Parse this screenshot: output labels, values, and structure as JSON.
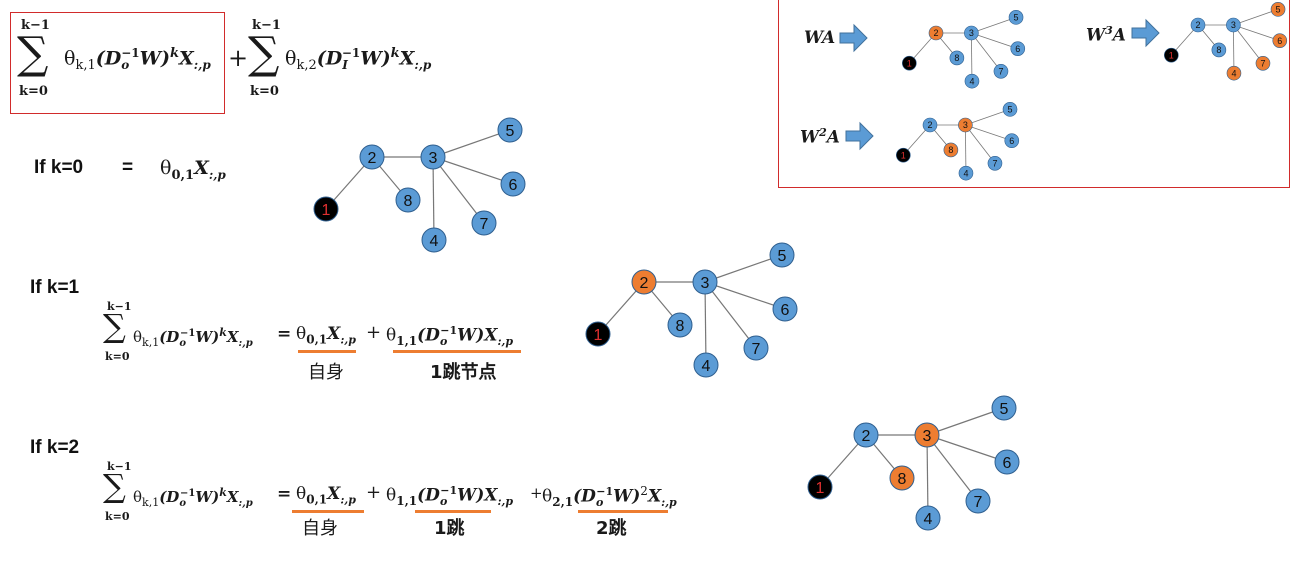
{
  "formula": {
    "k_minus_1": "k−1",
    "k_eq_0": "k=0",
    "sum_sign": "∑",
    "theta_k1": "θ",
    "sub_k1": "k,1",
    "sub_k2": "k,2",
    "D_o": "(D",
    "D_o_sub": "o",
    "D_I_sub": "I",
    "inv": "−1",
    "W": "W)",
    "k_sup": "k",
    "X": "X",
    "X_sub": ":,p",
    "plus": "+",
    "equals": "="
  },
  "rows": {
    "k0": {
      "label": "If k=0",
      "equals": "=",
      "theta": "θ",
      "theta_sub": "0,1",
      "X": "X",
      "X_sub": ":,p"
    },
    "k1": {
      "label": "If k=1",
      "self_label": "自身",
      "hop1_label": "1跳节点",
      "theta_a_sub": "0,1",
      "theta_b_sub": "1,1"
    },
    "k2": {
      "label": "If k=2",
      "self_label": "自身",
      "hop1_label": "1跳",
      "hop2_label": "2跳",
      "theta_a_sub": "0,1",
      "theta_b_sub": "1,1",
      "theta_c_sub": "2,1",
      "sq": "2"
    }
  },
  "inset": {
    "wa_label": "WA",
    "w2a_label": "W",
    "w2a_sup": "2",
    "w2a_tail": "A",
    "w3a_label": "W",
    "w3a_sup": "3",
    "w3a_tail": "A"
  },
  "graph": {
    "node_labels": [
      "1",
      "2",
      "3",
      "4",
      "5",
      "6",
      "7",
      "8"
    ],
    "edges": [
      [
        "1",
        "2"
      ],
      [
        "2",
        "3"
      ],
      [
        "2",
        "8"
      ],
      [
        "3",
        "5"
      ],
      [
        "3",
        "6"
      ],
      [
        "3",
        "7"
      ],
      [
        "3",
        "4"
      ]
    ],
    "colors": {
      "blue": "#5b9bd5",
      "orange": "#ed7d31",
      "black": "#000000",
      "red_text": "#e03030",
      "edge": "#777777"
    },
    "graphs": [
      {
        "id": "g-k0",
        "orange": []
      },
      {
        "id": "g-k1",
        "orange": [
          "2"
        ]
      },
      {
        "id": "g-k2",
        "orange": [
          "3",
          "8"
        ]
      },
      {
        "id": "g-wa",
        "orange": [
          "2"
        ]
      },
      {
        "id": "g-w2a",
        "orange": [
          "3",
          "8"
        ]
      },
      {
        "id": "g-w3a",
        "orange": [
          "5",
          "6",
          "7",
          "4"
        ]
      }
    ]
  }
}
